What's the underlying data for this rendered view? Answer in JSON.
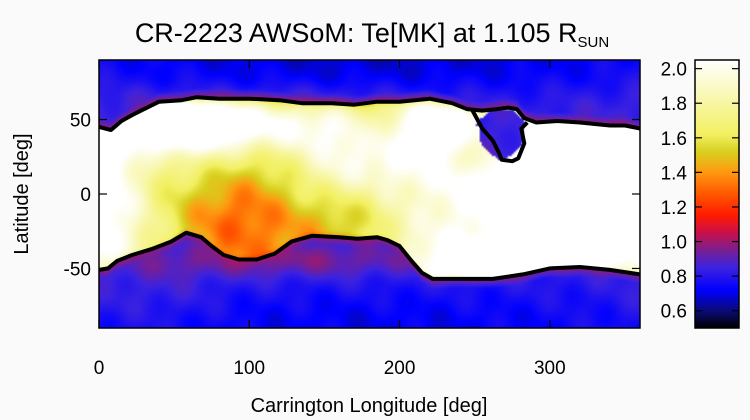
{
  "chart_data": {
    "type": "heatmap",
    "title": "CR-2223 AWSoM: Te[MK] at 1.105 R",
    "title_subscript": "SUN",
    "xlabel": "Carrington Longitude [deg]",
    "ylabel": "Latitude [deg]",
    "xlim": [
      0,
      360
    ],
    "ylim": [
      -90,
      90
    ],
    "xticks": [
      "0",
      "100",
      "200",
      "300"
    ],
    "xtick_values": [
      0,
      100,
      200,
      300
    ],
    "yticks": [
      "50",
      "0",
      "-50"
    ],
    "ytick_values": [
      50,
      0,
      -50
    ],
    "colorbar": {
      "range": [
        0.5,
        2.05
      ],
      "ticks": [
        "0.6",
        "0.8",
        "1.0",
        "1.2",
        "1.4",
        "1.6",
        "1.8",
        "2.0"
      ],
      "tick_values": [
        0.6,
        0.8,
        1.0,
        1.2,
        1.4,
        1.6,
        1.8,
        2.0
      ],
      "colormap": [
        [
          0.5,
          "#000000"
        ],
        [
          0.6,
          "#0a0a78"
        ],
        [
          0.72,
          "#0000ff"
        ],
        [
          0.85,
          "#3c22e0"
        ],
        [
          0.95,
          "#7a1f90"
        ],
        [
          1.05,
          "#c8104a"
        ],
        [
          1.15,
          "#ff1a00"
        ],
        [
          1.28,
          "#ff5a00"
        ],
        [
          1.4,
          "#ff9810"
        ],
        [
          1.52,
          "#d8d020"
        ],
        [
          1.62,
          "#f2f060"
        ],
        [
          2.05,
          "#ffffff"
        ]
      ]
    },
    "north_boundary": [
      [
        0,
        45
      ],
      [
        8,
        43
      ],
      [
        15,
        49
      ],
      [
        22,
        53
      ],
      [
        30,
        57
      ],
      [
        40,
        62
      ],
      [
        55,
        63
      ],
      [
        65,
        65
      ],
      [
        80,
        64
      ],
      [
        100,
        64
      ],
      [
        120,
        63
      ],
      [
        135,
        61
      ],
      [
        155,
        61
      ],
      [
        170,
        60
      ],
      [
        185,
        62
      ],
      [
        200,
        62
      ],
      [
        210,
        63
      ],
      [
        220,
        64
      ],
      [
        235,
        61
      ],
      [
        245,
        57
      ],
      [
        255,
        56
      ],
      [
        265,
        57
      ],
      [
        272,
        58
      ],
      [
        278,
        57
      ],
      [
        283,
        51
      ],
      [
        291,
        48
      ],
      [
        305,
        49
      ],
      [
        320,
        48
      ],
      [
        340,
        46
      ],
      [
        350,
        46
      ],
      [
        360,
        44
      ]
    ],
    "north_bay": [
      [
        248,
        57
      ],
      [
        255,
        44
      ],
      [
        262,
        36
      ],
      [
        266,
        28
      ],
      [
        268,
        23
      ],
      [
        275,
        22
      ],
      [
        279,
        24
      ],
      [
        283,
        34
      ],
      [
        281,
        44
      ],
      [
        285,
        48
      ]
    ],
    "south_boundary": [
      [
        0,
        -51
      ],
      [
        6,
        -50
      ],
      [
        12,
        -45
      ],
      [
        22,
        -41
      ],
      [
        35,
        -37
      ],
      [
        48,
        -32
      ],
      [
        58,
        -26
      ],
      [
        68,
        -29
      ],
      [
        75,
        -35
      ],
      [
        83,
        -41
      ],
      [
        93,
        -44
      ],
      [
        105,
        -44
      ],
      [
        117,
        -40
      ],
      [
        128,
        -32
      ],
      [
        142,
        -28
      ],
      [
        160,
        -29
      ],
      [
        172,
        -30
      ],
      [
        185,
        -29
      ],
      [
        192,
        -31
      ],
      [
        200,
        -35
      ],
      [
        208,
        -45
      ],
      [
        215,
        -53
      ],
      [
        222,
        -57
      ],
      [
        240,
        -57
      ],
      [
        262,
        -57
      ],
      [
        282,
        -54
      ],
      [
        300,
        -50
      ],
      [
        320,
        -49
      ],
      [
        340,
        -51
      ],
      [
        360,
        -54
      ]
    ],
    "intensity_blobs": [
      [
        0,
        0,
        200,
        62,
        1.02
      ],
      [
        205,
        0,
        100,
        60,
        0.55
      ],
      [
        330,
        8,
        70,
        45,
        0.5
      ],
      [
        165,
        38,
        200,
        30,
        0.38
      ],
      [
        265,
        -52,
        200,
        28,
        0.45
      ],
      [
        60,
        48,
        220,
        14,
        0.55
      ],
      [
        45,
        50,
        65,
        14,
        0.35
      ],
      [
        230,
        52,
        40,
        12,
        0.32
      ],
      [
        330,
        32,
        60,
        16,
        0.25
      ],
      [
        175,
        20,
        55,
        15,
        0.18
      ],
      [
        265,
        5,
        50,
        20,
        0.22
      ],
      [
        140,
        5,
        60,
        18,
        0.12
      ],
      [
        230,
        -50,
        55,
        14,
        0.2
      ],
      [
        270,
        -50,
        40,
        11,
        0.3
      ],
      [
        20,
        40,
        30,
        14,
        -0.3
      ],
      [
        60,
        -5,
        55,
        22,
        -0.2
      ],
      [
        110,
        12,
        45,
        20,
        -0.18
      ],
      [
        95,
        -20,
        50,
        16,
        -0.15
      ],
      [
        40,
        20,
        25,
        15,
        -0.1
      ],
      [
        160,
        -15,
        40,
        16,
        -0.12
      ],
      [
        255,
        28,
        22,
        10,
        -0.25
      ],
      [
        185,
        45,
        25,
        10,
        -0.2
      ]
    ],
    "north_cap_blobs": [
      [
        180,
        90,
        360,
        20,
        -0.18
      ],
      [
        120,
        62,
        160,
        8,
        0.08
      ]
    ],
    "south_cap_blobs": [
      [
        180,
        -90,
        360,
        25,
        -0.15
      ],
      [
        120,
        -45,
        150,
        8,
        0.12
      ],
      [
        40,
        -70,
        60,
        15,
        0.05
      ]
    ]
  }
}
